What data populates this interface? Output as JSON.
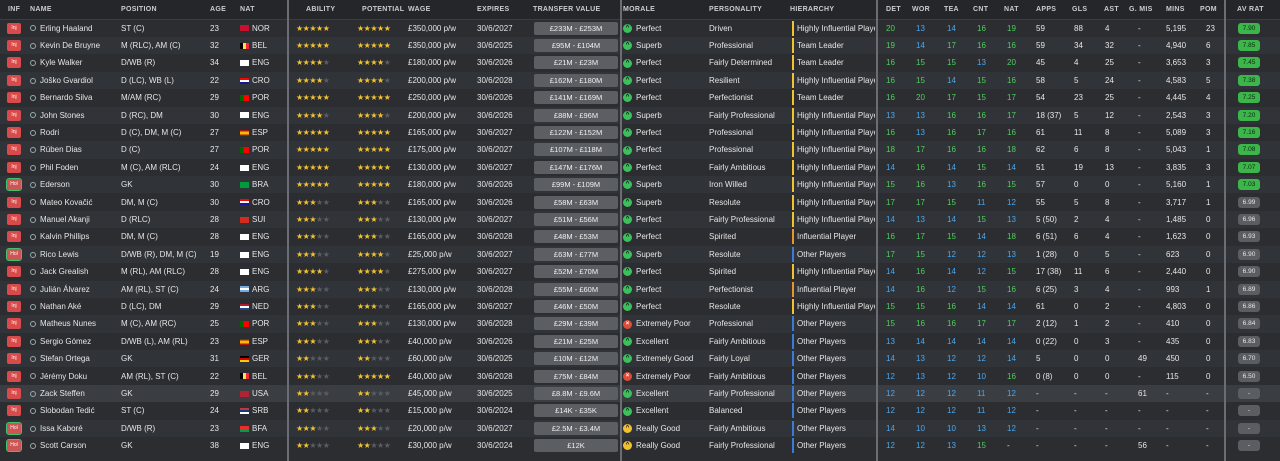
{
  "headers": [
    "INF",
    "NAME",
    "POSITION",
    "AGE",
    "NAT",
    "ABILITY",
    "POTENTIAL",
    "WAGE",
    "EXPIRES",
    "TRANSFER VALUE",
    "MORALE",
    "PERSONALITY",
    "HIERARCHY",
    "DET",
    "WOR",
    "TEA",
    "CNT",
    "NAT",
    "APPS",
    "GLS",
    "AST",
    "G. MIS",
    "MINS",
    "POM",
    "AV RAT"
  ],
  "colors": {
    "green": "#3cb54a",
    "blue": "#4aa8f0",
    "gold": "#f2c230",
    "red": "#d94a4a"
  },
  "players": [
    {
      "inf": "Inj",
      "name": "Erling Haaland",
      "pos": "ST (C)",
      "age": "23",
      "nat": "NOR",
      "ability": 5,
      "potential": 5,
      "wage": "£350,000 p/w",
      "expires": "30/6/2027",
      "tv": "£233M - £253M",
      "morale": "Perfect",
      "mtype": "good",
      "pers": "Driven",
      "hier": "Highly Influential Player",
      "hcol": "#f2c230",
      "det": "20",
      "wor": "13",
      "tea": "14",
      "cnt": "16",
      "nat2": "19",
      "apps": "59",
      "gls": "88",
      "ast": "4",
      "gmis": "-",
      "mins": "5,195",
      "pom": "23",
      "avr": "7.90",
      "avrc": "g"
    },
    {
      "inf": "Inj",
      "name": "Kevin De Bruyne",
      "pos": "M (RLC), AM (C)",
      "age": "32",
      "nat": "BEL",
      "ability": 5,
      "potential": 5,
      "wage": "£350,000 p/w",
      "expires": "30/6/2025",
      "tv": "£95M - £104M",
      "morale": "Superb",
      "mtype": "good",
      "pers": "Professional",
      "hier": "Team Leader",
      "hcol": "#f2c230",
      "det": "19",
      "wor": "14",
      "tea": "17",
      "cnt": "16",
      "nat2": "16",
      "apps": "59",
      "gls": "34",
      "ast": "32",
      "gmis": "-",
      "mins": "4,940",
      "pom": "6",
      "avr": "7.85",
      "avrc": "g"
    },
    {
      "inf": "Inj",
      "name": "Kyle Walker",
      "pos": "D/WB (R)",
      "age": "34",
      "nat": "ENG",
      "ability": 4,
      "potential": 4,
      "wage": "£180,000 p/w",
      "expires": "30/6/2026",
      "tv": "£21M - £23M",
      "morale": "Perfect",
      "mtype": "good",
      "pers": "Fairly Determined",
      "hier": "Team Leader",
      "hcol": "#f2c230",
      "det": "16",
      "wor": "15",
      "tea": "15",
      "cnt": "13",
      "nat2": "20",
      "apps": "45",
      "gls": "4",
      "ast": "25",
      "gmis": "-",
      "mins": "3,653",
      "pom": "3",
      "avr": "7.45",
      "avrc": "g"
    },
    {
      "inf": "Inj",
      "name": "Joško Gvardiol",
      "pos": "D (LC), WB (L)",
      "age": "22",
      "nat": "CRO",
      "ability": 4,
      "potential": 4,
      "wage": "£200,000 p/w",
      "expires": "30/6/2028",
      "tv": "£162M - £180M",
      "morale": "Perfect",
      "mtype": "good",
      "pers": "Resilient",
      "hier": "Highly Influential Player",
      "hcol": "#f2c230",
      "det": "16",
      "wor": "15",
      "tea": "14",
      "cnt": "15",
      "nat2": "16",
      "apps": "58",
      "gls": "5",
      "ast": "24",
      "gmis": "-",
      "mins": "4,583",
      "pom": "5",
      "avr": "7.38",
      "avrc": "g"
    },
    {
      "inf": "Inj",
      "name": "Bernardo Silva",
      "pos": "M/AM (RC)",
      "age": "29",
      "nat": "POR",
      "ability": 4.5,
      "potential": 4.5,
      "wage": "£250,000 p/w",
      "expires": "30/6/2026",
      "tv": "£141M - £169M",
      "morale": "Perfect",
      "mtype": "good",
      "pers": "Perfectionist",
      "hier": "Team Leader",
      "hcol": "#f2c230",
      "det": "16",
      "wor": "20",
      "tea": "17",
      "cnt": "15",
      "nat2": "17",
      "apps": "54",
      "gls": "23",
      "ast": "25",
      "gmis": "-",
      "mins": "4,445",
      "pom": "4",
      "avr": "7.25",
      "avrc": "g"
    },
    {
      "inf": "Inj",
      "name": "John Stones",
      "pos": "D (RC), DM",
      "age": "30",
      "nat": "ENG",
      "ability": 4,
      "potential": 4,
      "wage": "£200,000 p/w",
      "expires": "30/6/2026",
      "tv": "£88M - £96M",
      "morale": "Superb",
      "mtype": "good",
      "pers": "Fairly Professional",
      "hier": "Highly Influential Player",
      "hcol": "#f2c230",
      "det": "13",
      "wor": "13",
      "tea": "16",
      "cnt": "16",
      "nat2": "17",
      "apps": "18 (37)",
      "gls": "5",
      "ast": "12",
      "gmis": "-",
      "mins": "2,543",
      "pom": "3",
      "avr": "7.20",
      "avrc": "g"
    },
    {
      "inf": "Inj",
      "name": "Rodri",
      "pos": "D (C), DM, M (C)",
      "age": "27",
      "nat": "ESP",
      "ability": 4.5,
      "potential": 4.5,
      "wage": "£165,000 p/w",
      "expires": "30/6/2027",
      "tv": "£122M - £152M",
      "morale": "Perfect",
      "mtype": "good",
      "pers": "Professional",
      "hier": "Highly Influential Player",
      "hcol": "#f2c230",
      "det": "16",
      "wor": "13",
      "tea": "16",
      "cnt": "17",
      "nat2": "16",
      "apps": "61",
      "gls": "11",
      "ast": "8",
      "gmis": "-",
      "mins": "5,089",
      "pom": "3",
      "avr": "7.16",
      "avrc": "g"
    },
    {
      "inf": "Inj",
      "name": "Rúben Dias",
      "pos": "D (C)",
      "age": "27",
      "nat": "POR",
      "ability": 4.5,
      "potential": 4.5,
      "wage": "£175,000 p/w",
      "expires": "30/6/2027",
      "tv": "£107M - £118M",
      "morale": "Perfect",
      "mtype": "good",
      "pers": "Professional",
      "hier": "Highly Influential Player",
      "hcol": "#f2c230",
      "det": "18",
      "wor": "17",
      "tea": "16",
      "cnt": "16",
      "nat2": "18",
      "apps": "62",
      "gls": "6",
      "ast": "8",
      "gmis": "-",
      "mins": "5,043",
      "pom": "1",
      "avr": "7.08",
      "avrc": "g"
    },
    {
      "inf": "Inj",
      "name": "Phil Foden",
      "pos": "M (C), AM (RLC)",
      "age": "24",
      "nat": "ENG",
      "ability": 4.5,
      "potential": 4.5,
      "wage": "£130,000 p/w",
      "expires": "30/6/2027",
      "tv": "£147M - £176M",
      "morale": "Perfect",
      "mtype": "good",
      "pers": "Fairly Ambitious",
      "hier": "Highly Influential Player",
      "hcol": "#f2c230",
      "det": "14",
      "wor": "16",
      "tea": "14",
      "cnt": "15",
      "nat2": "14",
      "apps": "51",
      "gls": "19",
      "ast": "13",
      "gmis": "-",
      "mins": "3,835",
      "pom": "3",
      "avr": "7.07",
      "avrc": "g"
    },
    {
      "inf": "Hol",
      "name": "Ederson",
      "pos": "GK",
      "age": "30",
      "nat": "BRA",
      "ability": 4.5,
      "potential": 4.5,
      "wage": "£180,000 p/w",
      "expires": "30/6/2026",
      "tv": "£99M - £109M",
      "morale": "Superb",
      "mtype": "good",
      "pers": "Iron Willed",
      "hier": "Highly Influential Player",
      "hcol": "#f2c230",
      "det": "15",
      "wor": "16",
      "tea": "13",
      "cnt": "16",
      "nat2": "15",
      "apps": "57",
      "gls": "0",
      "ast": "0",
      "gmis": "-",
      "mins": "5,160",
      "pom": "1",
      "avr": "7.03",
      "avrc": "g"
    },
    {
      "inf": "Inj",
      "name": "Mateo Kovačić",
      "pos": "DM, M (C)",
      "age": "30",
      "nat": "CRO",
      "ability": 3,
      "potential": 3,
      "wage": "£165,000 p/w",
      "expires": "30/6/2026",
      "tv": "£58M - £63M",
      "morale": "Superb",
      "mtype": "good",
      "pers": "Resolute",
      "hier": "Highly Influential Player",
      "hcol": "#f2c230",
      "det": "17",
      "wor": "17",
      "tea": "15",
      "cnt": "11",
      "nat2": "12",
      "apps": "55",
      "gls": "5",
      "ast": "8",
      "gmis": "-",
      "mins": "3,717",
      "pom": "1",
      "avr": "6.99",
      "avrc": "d"
    },
    {
      "inf": "Inj",
      "name": "Manuel Akanji",
      "pos": "D (RLC)",
      "age": "28",
      "nat": "SUI",
      "ability": 3,
      "potential": 3,
      "wage": "£130,000 p/w",
      "expires": "30/6/2027",
      "tv": "£51M - £56M",
      "morale": "Perfect",
      "mtype": "good",
      "pers": "Fairly Professional",
      "hier": "Highly Influential Player",
      "hcol": "#f2c230",
      "det": "14",
      "wor": "13",
      "tea": "14",
      "cnt": "15",
      "nat2": "13",
      "apps": "5 (50)",
      "gls": "2",
      "ast": "4",
      "gmis": "-",
      "mins": "1,485",
      "pom": "0",
      "avr": "6.96",
      "avrc": "d"
    },
    {
      "inf": "Inj",
      "name": "Kalvin Phillips",
      "pos": "DM, M (C)",
      "age": "28",
      "nat": "ENG",
      "ability": 3,
      "potential": 3,
      "wage": "£165,000 p/w",
      "expires": "30/6/2028",
      "tv": "£48M - £53M",
      "morale": "Perfect",
      "mtype": "good",
      "pers": "Spirited",
      "hier": "Influential Player",
      "hcol": "#e8952b",
      "det": "16",
      "wor": "17",
      "tea": "15",
      "cnt": "14",
      "nat2": "18",
      "apps": "6 (51)",
      "gls": "6",
      "ast": "4",
      "gmis": "-",
      "mins": "1,623",
      "pom": "0",
      "avr": "6.93",
      "avrc": "d"
    },
    {
      "inf": "Hol",
      "name": "Rico Lewis",
      "pos": "D/WB (R), DM, M (C)",
      "age": "19",
      "nat": "ENG",
      "ability": 2.5,
      "potential": 3.5,
      "wage": "£25,000 p/w",
      "expires": "30/6/2027",
      "tv": "£63M - £77M",
      "morale": "Superb",
      "mtype": "good",
      "pers": "Resolute",
      "hier": "Other Players",
      "hcol": "#3a7bd5",
      "det": "17",
      "wor": "15",
      "tea": "12",
      "cnt": "12",
      "nat2": "13",
      "apps": "1 (28)",
      "gls": "0",
      "ast": "5",
      "gmis": "-",
      "mins": "623",
      "pom": "0",
      "avr": "6.90",
      "avrc": "d"
    },
    {
      "inf": "Inj",
      "name": "Jack Grealish",
      "pos": "M (RL), AM (RLC)",
      "age": "28",
      "nat": "ENG",
      "ability": 4,
      "potential": 4,
      "wage": "£275,000 p/w",
      "expires": "30/6/2027",
      "tv": "£52M - £70M",
      "morale": "Perfect",
      "mtype": "good",
      "pers": "Spirited",
      "hier": "Highly Influential Player",
      "hcol": "#f2c230",
      "det": "14",
      "wor": "16",
      "tea": "14",
      "cnt": "12",
      "nat2": "15",
      "apps": "17 (38)",
      "gls": "11",
      "ast": "6",
      "gmis": "-",
      "mins": "2,440",
      "pom": "0",
      "avr": "6.90",
      "avrc": "d"
    },
    {
      "inf": "Inj",
      "name": "Julián Álvarez",
      "pos": "AM (RL), ST (C)",
      "age": "24",
      "nat": "ARG",
      "ability": 3,
      "potential": 3,
      "wage": "£130,000 p/w",
      "expires": "30/6/2028",
      "tv": "£55M - £60M",
      "morale": "Perfect",
      "mtype": "good",
      "pers": "Perfectionist",
      "hier": "Influential Player",
      "hcol": "#e8952b",
      "det": "14",
      "wor": "16",
      "tea": "12",
      "cnt": "15",
      "nat2": "16",
      "apps": "6 (25)",
      "gls": "3",
      "ast": "4",
      "gmis": "-",
      "mins": "993",
      "pom": "1",
      "avr": "6.89",
      "avrc": "d"
    },
    {
      "inf": "Inj",
      "name": "Nathan Aké",
      "pos": "D (LC), DM",
      "age": "29",
      "nat": "NED",
      "ability": 3,
      "potential": 3,
      "wage": "£165,000 p/w",
      "expires": "30/6/2027",
      "tv": "£46M - £50M",
      "morale": "Perfect",
      "mtype": "good",
      "pers": "Resolute",
      "hier": "Highly Influential Player",
      "hcol": "#f2c230",
      "det": "15",
      "wor": "15",
      "tea": "16",
      "cnt": "14",
      "nat2": "14",
      "apps": "61",
      "gls": "0",
      "ast": "2",
      "gmis": "-",
      "mins": "4,803",
      "pom": "0",
      "avr": "6.86",
      "avrc": "d"
    },
    {
      "inf": "Inj",
      "name": "Matheus Nunes",
      "pos": "M (C), AM (RC)",
      "age": "25",
      "nat": "POR",
      "ability": 3,
      "potential": 3,
      "wage": "£130,000 p/w",
      "expires": "30/6/2028",
      "tv": "£29M - £39M",
      "morale": "Extremely Poor",
      "mtype": "bad",
      "pers": "Professional",
      "hier": "Other Players",
      "hcol": "#3a7bd5",
      "det": "15",
      "wor": "16",
      "tea": "16",
      "cnt": "17",
      "nat2": "17",
      "apps": "2 (12)",
      "gls": "1",
      "ast": "2",
      "gmis": "-",
      "mins": "410",
      "pom": "0",
      "avr": "6.84",
      "avrc": "d"
    },
    {
      "inf": "Inj",
      "name": "Sergio Gómez",
      "pos": "D/WB (L), AM (RL)",
      "age": "23",
      "nat": "ESP",
      "ability": 3,
      "potential": 3,
      "wage": "£40,000 p/w",
      "expires": "30/6/2026",
      "tv": "£21M - £25M",
      "morale": "Excellent",
      "mtype": "good",
      "pers": "Fairly Ambitious",
      "hier": "Other Players",
      "hcol": "#3a7bd5",
      "det": "13",
      "wor": "14",
      "tea": "14",
      "cnt": "14",
      "nat2": "14",
      "apps": "0 (22)",
      "gls": "0",
      "ast": "3",
      "gmis": "-",
      "mins": "435",
      "pom": "0",
      "avr": "6.83",
      "avrc": "d"
    },
    {
      "inf": "Inj",
      "name": "Stefan Ortega",
      "pos": "GK",
      "age": "31",
      "nat": "GER",
      "ability": 2,
      "potential": 2,
      "wage": "£60,000 p/w",
      "expires": "30/6/2025",
      "tv": "£10M - £12M",
      "morale": "Extremely Good",
      "mtype": "good",
      "pers": "Fairly Loyal",
      "hier": "Other Players",
      "hcol": "#3a7bd5",
      "det": "14",
      "wor": "13",
      "tea": "12",
      "cnt": "12",
      "nat2": "14",
      "apps": "5",
      "gls": "0",
      "ast": "0",
      "gmis": "49",
      "mins": "450",
      "pom": "0",
      "avr": "6.70",
      "avrc": "d"
    },
    {
      "inf": "Inj",
      "name": "Jérémy Doku",
      "pos": "AM (RL), ST (C)",
      "age": "22",
      "nat": "BEL",
      "ability": 2.5,
      "potential": 4.5,
      "wage": "£40,000 p/w",
      "expires": "30/6/2028",
      "tv": "£75M - £84M",
      "morale": "Extremely Poor",
      "mtype": "bad",
      "pers": "Fairly Ambitious",
      "hier": "Other Players",
      "hcol": "#3a7bd5",
      "det": "12",
      "wor": "13",
      "tea": "12",
      "cnt": "10",
      "nat2": "16",
      "apps": "0 (8)",
      "gls": "0",
      "ast": "0",
      "gmis": "-",
      "mins": "115",
      "pom": "0",
      "avr": "6.50",
      "avrc": "d"
    },
    {
      "inf": "Inj",
      "name": "Zack Steffen",
      "pos": "GK",
      "age": "29",
      "nat": "USA",
      "ability": 2,
      "potential": 2,
      "wage": "£45,000 p/w",
      "expires": "30/6/2025",
      "tv": "£8.8M - £9.6M",
      "morale": "Excellent",
      "mtype": "good",
      "pers": "Fairly Professional",
      "hier": "Other Players",
      "hcol": "#3a7bd5",
      "det": "12",
      "wor": "12",
      "tea": "12",
      "cnt": "11",
      "nat2": "12",
      "apps": "-",
      "gls": "-",
      "ast": "-",
      "gmis": "61",
      "mins": "-",
      "pom": "-",
      "avr": "-",
      "avrc": "d"
    },
    {
      "inf": "Inj",
      "name": "Slobodan Tedić",
      "pos": "ST (C)",
      "age": "24",
      "nat": "SRB",
      "ability": 1.5,
      "potential": 1.5,
      "wage": "£15,000 p/w",
      "expires": "30/6/2024",
      "tv": "£14K - £35K",
      "morale": "Excellent",
      "mtype": "good",
      "pers": "Balanced",
      "hier": "Other Players",
      "hcol": "#3a7bd5",
      "det": "12",
      "wor": "12",
      "tea": "12",
      "cnt": "11",
      "nat2": "12",
      "apps": "-",
      "gls": "-",
      "ast": "-",
      "gmis": "-",
      "mins": "-",
      "pom": "-",
      "avr": "-",
      "avrc": "d"
    },
    {
      "inf": "Hol",
      "name": "Issa Kaboré",
      "pos": "D/WB (R)",
      "age": "23",
      "nat": "BFA",
      "ability": 2.5,
      "potential": 2.5,
      "wage": "£20,000 p/w",
      "expires": "30/6/2027",
      "tv": "£2.5M - £3.4M",
      "morale": "Really Good",
      "mtype": "mid",
      "pers": "Fairly Ambitious",
      "hier": "Other Players",
      "hcol": "#3a7bd5",
      "det": "14",
      "wor": "10",
      "tea": "10",
      "cnt": "13",
      "nat2": "12",
      "apps": "-",
      "gls": "-",
      "ast": "-",
      "gmis": "-",
      "mins": "-",
      "pom": "-",
      "avr": "-",
      "avrc": "d"
    },
    {
      "inf": "Hol",
      "name": "Scott Carson",
      "pos": "GK",
      "age": "38",
      "nat": "ENG",
      "ability": 1.5,
      "potential": 1.5,
      "wage": "£30,000 p/w",
      "expires": "30/6/2024",
      "tv": "£12K",
      "morale": "Really Good",
      "mtype": "mid",
      "pers": "Fairly Professional",
      "hier": "Other Players",
      "hcol": "#3a7bd5",
      "det": "12",
      "wor": "12",
      "tea": "13",
      "cnt": "15",
      "nat2": "-",
      "apps": "-",
      "gls": "-",
      "ast": "-",
      "gmis": "56",
      "mins": "-",
      "pom": "-",
      "avr": "-",
      "avrc": "d"
    }
  ]
}
